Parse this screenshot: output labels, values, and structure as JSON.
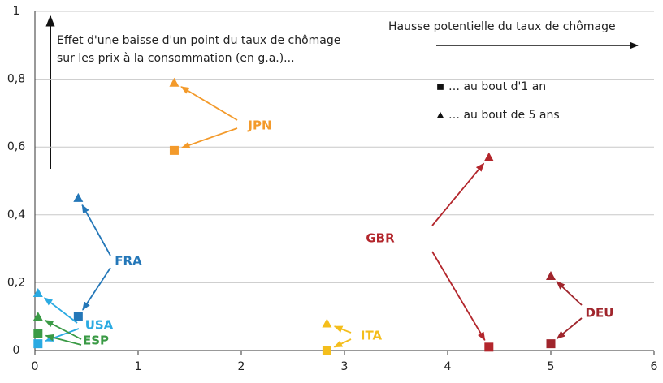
{
  "chart_data": {
    "type": "scatter",
    "annotations": [
      "Effet d'une baisse d'un point du taux de chômage",
      "sur les prix à la consommation (en g.a.)...",
      "Hausse potentielle du taux de chômage"
    ],
    "legend": [
      {
        "label": "… au bout d'1 an",
        "marker": "square"
      },
      {
        "label": "… au bout de 5 ans",
        "marker": "triangle"
      }
    ],
    "series": [
      {
        "name": "JPN",
        "color": "#f39a2b",
        "x": [
          1.35,
          1.35
        ],
        "values": [
          0.59,
          0.79
        ]
      },
      {
        "name": "FRA",
        "color": "#2477b8",
        "x": [
          0.42,
          0.42
        ],
        "values": [
          0.1,
          0.45
        ]
      },
      {
        "name": "USA",
        "color": "#2aaae2",
        "x": [
          0.03,
          0.03
        ],
        "values": [
          0.02,
          0.17
        ]
      },
      {
        "name": "ESP",
        "color": "#3a9a45",
        "x": [
          0.03,
          0.03
        ],
        "values": [
          0.05,
          0.1
        ]
      },
      {
        "name": "ITA",
        "color": "#f4be1c",
        "x": [
          2.83,
          2.83
        ],
        "values": [
          0,
          0.08
        ]
      },
      {
        "name": "GBR",
        "color": "#b3262c",
        "x": [
          4.4,
          4.4
        ],
        "values": [
          0.01,
          0.57
        ]
      },
      {
        "name": "DEU",
        "color": "#a0252c",
        "x": [
          5,
          5
        ],
        "values": [
          0.02,
          0.22
        ]
      }
    ],
    "xlim": [
      0,
      6
    ],
    "xticks": [
      0,
      1,
      2,
      3,
      4,
      5,
      6
    ],
    "ylim": [
      0,
      1
    ],
    "yticks": [
      0,
      {
        "value": 0.2,
        "label": "0,2"
      },
      {
        "value": 0.4,
        "label": "0,4"
      },
      {
        "value": 0.6,
        "label": "0,6"
      },
      {
        "value": 0.8,
        "label": "0,8"
      },
      1
    ],
    "grid": true
  }
}
